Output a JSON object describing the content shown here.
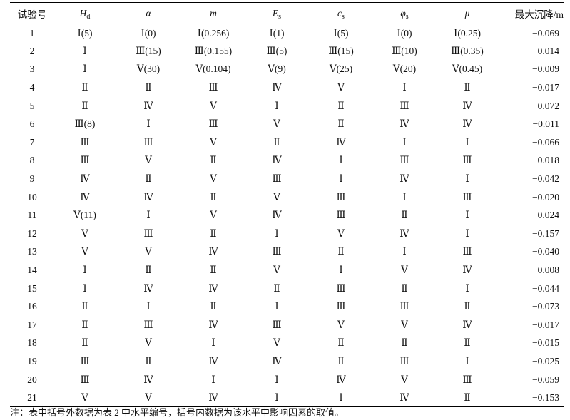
{
  "table": {
    "headers": [
      {
        "key": "no",
        "label": "试验号",
        "italic": false
      },
      {
        "key": "hd",
        "label": "H",
        "sub": "d",
        "italic": true
      },
      {
        "key": "alpha",
        "label": "α",
        "italic": true
      },
      {
        "key": "m",
        "label": "m",
        "italic": true
      },
      {
        "key": "es",
        "label": "E",
        "sub": "s",
        "italic": true
      },
      {
        "key": "cs",
        "label": "c",
        "sub": "s",
        "italic": true
      },
      {
        "key": "phis",
        "label": "φ",
        "sub": "s",
        "italic": true
      },
      {
        "key": "mu",
        "label": "μ",
        "italic": true
      },
      {
        "key": "max",
        "label": "最大沉降/m",
        "italic": false
      }
    ],
    "rows": [
      [
        "1",
        "Ⅰ(5)",
        "Ⅰ(0)",
        "Ⅰ(0.256)",
        "Ⅰ(1)",
        "Ⅰ(5)",
        "Ⅰ(0)",
        "Ⅰ(0.25)",
        "−0.069"
      ],
      [
        "2",
        "Ⅰ",
        "Ⅲ(15)",
        "Ⅲ(0.155)",
        "Ⅲ(5)",
        "Ⅲ(15)",
        "Ⅲ(10)",
        "Ⅲ(0.35)",
        "−0.014"
      ],
      [
        "3",
        "Ⅰ",
        "Ⅴ(30)",
        "Ⅴ(0.104)",
        "Ⅴ(9)",
        "Ⅴ(25)",
        "Ⅴ(20)",
        "Ⅴ(0.45)",
        "−0.009"
      ],
      [
        "4",
        "Ⅱ",
        "Ⅱ",
        "Ⅲ",
        "Ⅳ",
        "Ⅴ",
        "Ⅰ",
        "Ⅱ",
        "−0.017"
      ],
      [
        "5",
        "Ⅱ",
        "Ⅳ",
        "Ⅴ",
        "Ⅰ",
        "Ⅱ",
        "Ⅲ",
        "Ⅳ",
        "−0.072"
      ],
      [
        "6",
        "Ⅲ(8)",
        "Ⅰ",
        "Ⅲ",
        "Ⅴ",
        "Ⅱ",
        "Ⅳ",
        "Ⅳ",
        "−0.011"
      ],
      [
        "7",
        "Ⅲ",
        "Ⅲ",
        "Ⅴ",
        "Ⅱ",
        "Ⅳ",
        "Ⅰ",
        "Ⅰ",
        "−0.066"
      ],
      [
        "8",
        "Ⅲ",
        "Ⅴ",
        "Ⅱ",
        "Ⅳ",
        "Ⅰ",
        "Ⅲ",
        "Ⅲ",
        "−0.018"
      ],
      [
        "9",
        "Ⅳ",
        "Ⅱ",
        "Ⅴ",
        "Ⅲ",
        "Ⅰ",
        "Ⅳ",
        "Ⅰ",
        "−0.042"
      ],
      [
        "10",
        "Ⅳ",
        "Ⅳ",
        "Ⅱ",
        "Ⅴ",
        "Ⅲ",
        "Ⅰ",
        "Ⅲ",
        "−0.020"
      ],
      [
        "11",
        "Ⅴ(11)",
        "Ⅰ",
        "Ⅴ",
        "Ⅳ",
        "Ⅲ",
        "Ⅱ",
        "Ⅰ",
        "−0.024"
      ],
      [
        "12",
        "Ⅴ",
        "Ⅲ",
        "Ⅱ",
        "Ⅰ",
        "Ⅴ",
        "Ⅳ",
        "Ⅰ",
        "−0.157"
      ],
      [
        "13",
        "Ⅴ",
        "Ⅴ",
        "Ⅳ",
        "Ⅲ",
        "Ⅱ",
        "Ⅰ",
        "Ⅲ",
        "−0.040"
      ],
      [
        "14",
        "Ⅰ",
        "Ⅱ",
        "Ⅱ",
        "Ⅴ",
        "Ⅰ",
        "Ⅴ",
        "Ⅳ",
        "−0.008"
      ],
      [
        "15",
        "Ⅰ",
        "Ⅳ",
        "Ⅳ",
        "Ⅱ",
        "Ⅲ",
        "Ⅱ",
        "Ⅰ",
        "−0.044"
      ],
      [
        "16",
        "Ⅱ",
        "Ⅰ",
        "Ⅱ",
        "Ⅰ",
        "Ⅲ",
        "Ⅲ",
        "Ⅱ",
        "−0.073"
      ],
      [
        "17",
        "Ⅱ",
        "Ⅲ",
        "Ⅳ",
        "Ⅲ",
        "Ⅴ",
        "Ⅴ",
        "Ⅳ",
        "−0.017"
      ],
      [
        "18",
        "Ⅱ",
        "Ⅴ",
        "Ⅰ",
        "Ⅴ",
        "Ⅱ",
        "Ⅱ",
        "Ⅱ",
        "−0.015"
      ],
      [
        "19",
        "Ⅲ",
        "Ⅱ",
        "Ⅳ",
        "Ⅳ",
        "Ⅱ",
        "Ⅲ",
        "Ⅰ",
        "−0.025"
      ],
      [
        "20",
        "Ⅲ",
        "Ⅳ",
        "Ⅰ",
        "Ⅰ",
        "Ⅳ",
        "Ⅴ",
        "Ⅲ",
        "−0.059"
      ],
      [
        "21",
        "Ⅴ",
        "Ⅴ",
        "Ⅳ",
        "Ⅰ",
        "Ⅰ",
        "Ⅳ",
        "Ⅱ",
        "−0.153"
      ]
    ]
  },
  "note": "注：表中括号外数据为表 2 中水平编号，括号内数据为该水平中影响因素的取值。"
}
